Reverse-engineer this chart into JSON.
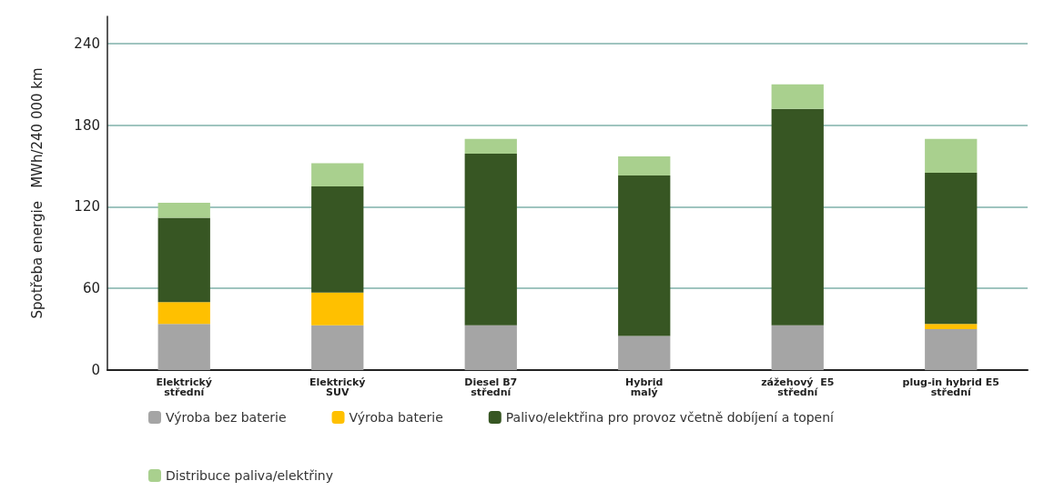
{
  "chart_data": {
    "type": "bar",
    "stacked": true,
    "ylabel": "Spotřeba energie   MWh/240 000 km",
    "categories": [
      "Elektrický\nstřední",
      "Elektrický\nSUV",
      "Diesel B7\nstřední",
      "Hybrid\nmalý",
      "zážehový  E5\nstřední",
      "plug-in hybrid E5\nstřední"
    ],
    "series": [
      {
        "name": "Výroba bez baterie",
        "color": "#a5a5a5",
        "values": [
          34,
          33,
          33,
          25,
          33,
          30
        ]
      },
      {
        "name": "Výroba baterie",
        "color": "#ffc000",
        "values": [
          16,
          24,
          0,
          0,
          0,
          4
        ]
      },
      {
        "name": "Palivo/elektřina pro provoz včetně dobíjení a topení",
        "color": "#375623",
        "values": [
          62,
          78,
          126,
          118,
          159,
          111
        ]
      },
      {
        "name": "Distribuce paliva/elektřiny",
        "color": "#a9d08e",
        "values": [
          11,
          17,
          11,
          14,
          18,
          25
        ]
      }
    ],
    "ylim": [
      0,
      260
    ],
    "yticks": [
      0,
      60,
      120,
      180,
      240
    ],
    "grid": "y",
    "legend": "bottom"
  }
}
